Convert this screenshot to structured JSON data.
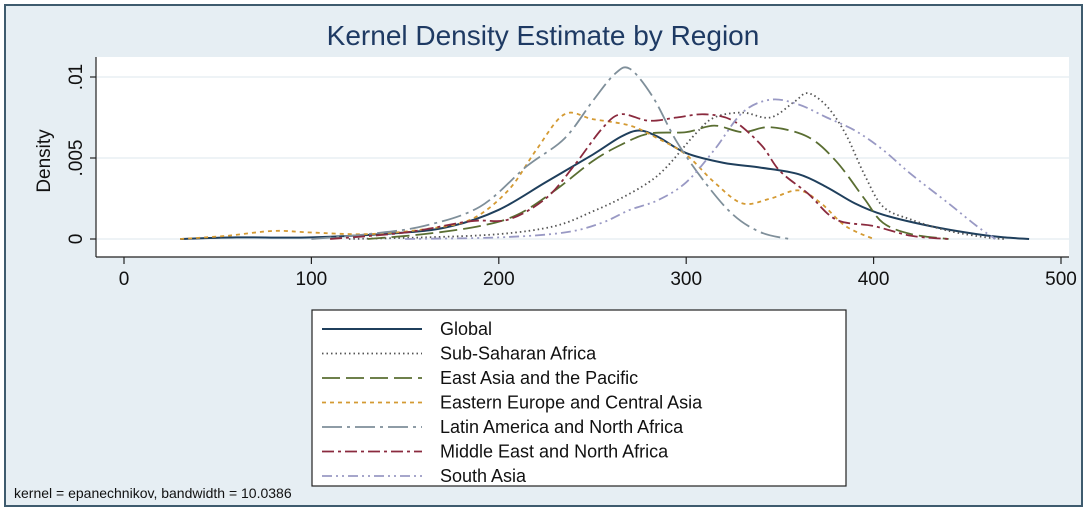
{
  "chart_data": {
    "type": "line",
    "title": "Kernel Density Estimate by Region",
    "xlabel": "",
    "ylabel": "Density",
    "xlim": [
      0,
      500
    ],
    "ylim": [
      0,
      0.011
    ],
    "x_ticks": [
      0,
      100,
      200,
      300,
      400,
      500
    ],
    "x_tick_labels": [
      "0",
      "100",
      "200",
      "300",
      "400",
      "500"
    ],
    "y_ticks": [
      0,
      0.005,
      0.01
    ],
    "y_tick_labels": [
      "0",
      ".005",
      ".01"
    ],
    "grid": true,
    "legend_position": "bottom",
    "note": "kernel = epanechnikov, bandwidth = 10.0386",
    "series": [
      {
        "name": "Global",
        "color": "#1f3f5c",
        "dash": "solid",
        "points": [
          [
            30,
            0
          ],
          [
            60,
            0.0001
          ],
          [
            100,
            0.0001
          ],
          [
            150,
            0.0004
          ],
          [
            175,
            0.0008
          ],
          [
            200,
            0.0018
          ],
          [
            225,
            0.0035
          ],
          [
            250,
            0.0052
          ],
          [
            265,
            0.0063
          ],
          [
            275,
            0.0067
          ],
          [
            285,
            0.0063
          ],
          [
            300,
            0.0053
          ],
          [
            320,
            0.0047
          ],
          [
            340,
            0.0044
          ],
          [
            360,
            0.004
          ],
          [
            375,
            0.0032
          ],
          [
            390,
            0.0022
          ],
          [
            405,
            0.0015
          ],
          [
            430,
            0.0008
          ],
          [
            455,
            0.0003
          ],
          [
            470,
            0.0001
          ],
          [
            483,
            0
          ]
        ]
      },
      {
        "name": "Sub-Saharan Africa",
        "color": "#555555",
        "dash": "dotted",
        "points": [
          [
            120,
            0
          ],
          [
            160,
            0.0001
          ],
          [
            200,
            0.0003
          ],
          [
            230,
            0.0008
          ],
          [
            250,
            0.0017
          ],
          [
            265,
            0.0025
          ],
          [
            280,
            0.0035
          ],
          [
            290,
            0.0045
          ],
          [
            305,
            0.0065
          ],
          [
            315,
            0.0075
          ],
          [
            330,
            0.0078
          ],
          [
            345,
            0.0075
          ],
          [
            358,
            0.0085
          ],
          [
            365,
            0.009
          ],
          [
            375,
            0.0082
          ],
          [
            385,
            0.0065
          ],
          [
            395,
            0.004
          ],
          [
            405,
            0.002
          ],
          [
            420,
            0.0012
          ],
          [
            440,
            0.0005
          ],
          [
            460,
            0.0001
          ],
          [
            470,
            0
          ]
        ]
      },
      {
        "name": "East Asia and the Pacific",
        "color": "#5a6e32",
        "dash": "longdash",
        "points": [
          [
            130,
            0
          ],
          [
            160,
            0.0003
          ],
          [
            190,
            0.0008
          ],
          [
            210,
            0.0015
          ],
          [
            230,
            0.003
          ],
          [
            250,
            0.0048
          ],
          [
            265,
            0.0058
          ],
          [
            280,
            0.0065
          ],
          [
            300,
            0.0066
          ],
          [
            315,
            0.007
          ],
          [
            330,
            0.0066
          ],
          [
            345,
            0.0069
          ],
          [
            365,
            0.0063
          ],
          [
            380,
            0.0048
          ],
          [
            395,
            0.0025
          ],
          [
            405,
            0.001
          ],
          [
            420,
            0.0003
          ],
          [
            440,
            0
          ]
        ]
      },
      {
        "name": "Eastern Europe and Central Asia",
        "color": "#d49a33",
        "dash": "shortdash",
        "points": [
          [
            30,
            0
          ],
          [
            55,
            0.0002
          ],
          [
            80,
            0.0005
          ],
          [
            100,
            0.0004
          ],
          [
            130,
            0.0003
          ],
          [
            160,
            0.0006
          ],
          [
            185,
            0.0012
          ],
          [
            205,
            0.003
          ],
          [
            220,
            0.0055
          ],
          [
            235,
            0.0077
          ],
          [
            250,
            0.0074
          ],
          [
            270,
            0.007
          ],
          [
            285,
            0.0062
          ],
          [
            300,
            0.0052
          ],
          [
            315,
            0.0035
          ],
          [
            330,
            0.0022
          ],
          [
            345,
            0.0025
          ],
          [
            360,
            0.003
          ],
          [
            372,
            0.0022
          ],
          [
            385,
            0.0008
          ],
          [
            400,
            0
          ]
        ]
      },
      {
        "name": "Latin America and North Africa",
        "color": "#7f8f9a",
        "dash": "longdashdot",
        "points": [
          [
            100,
            0
          ],
          [
            130,
            0.0003
          ],
          [
            160,
            0.0008
          ],
          [
            190,
            0.002
          ],
          [
            215,
            0.0045
          ],
          [
            235,
            0.0062
          ],
          [
            250,
            0.0085
          ],
          [
            262,
            0.0102
          ],
          [
            270,
            0.0105
          ],
          [
            282,
            0.0088
          ],
          [
            295,
            0.006
          ],
          [
            310,
            0.0035
          ],
          [
            325,
            0.0015
          ],
          [
            340,
            0.0004
          ],
          [
            355,
            0
          ]
        ]
      },
      {
        "name": "Middle East and North Africa",
        "color": "#8a2a3e",
        "dash": "dashdot",
        "points": [
          [
            110,
            0
          ],
          [
            150,
            0.0004
          ],
          [
            185,
            0.0011
          ],
          [
            205,
            0.0012
          ],
          [
            225,
            0.0025
          ],
          [
            240,
            0.0045
          ],
          [
            255,
            0.0068
          ],
          [
            265,
            0.0077
          ],
          [
            280,
            0.0073
          ],
          [
            295,
            0.0075
          ],
          [
            310,
            0.0077
          ],
          [
            325,
            0.0073
          ],
          [
            340,
            0.0058
          ],
          [
            350,
            0.0042
          ],
          [
            365,
            0.0028
          ],
          [
            380,
            0.0012
          ],
          [
            400,
            0.0008
          ],
          [
            420,
            0.0002
          ],
          [
            440,
            0
          ]
        ]
      },
      {
        "name": "South Asia",
        "color": "#9999c4",
        "dash": "dashdot2",
        "points": [
          [
            150,
            0
          ],
          [
            200,
            0.0001
          ],
          [
            235,
            0.0004
          ],
          [
            255,
            0.001
          ],
          [
            270,
            0.0018
          ],
          [
            285,
            0.0024
          ],
          [
            300,
            0.0035
          ],
          [
            315,
            0.0055
          ],
          [
            330,
            0.0078
          ],
          [
            345,
            0.0086
          ],
          [
            360,
            0.0083
          ],
          [
            375,
            0.0075
          ],
          [
            390,
            0.0067
          ],
          [
            405,
            0.0055
          ],
          [
            420,
            0.004
          ],
          [
            440,
            0.0022
          ],
          [
            455,
            0.0008
          ],
          [
            465,
            0
          ]
        ]
      }
    ]
  }
}
